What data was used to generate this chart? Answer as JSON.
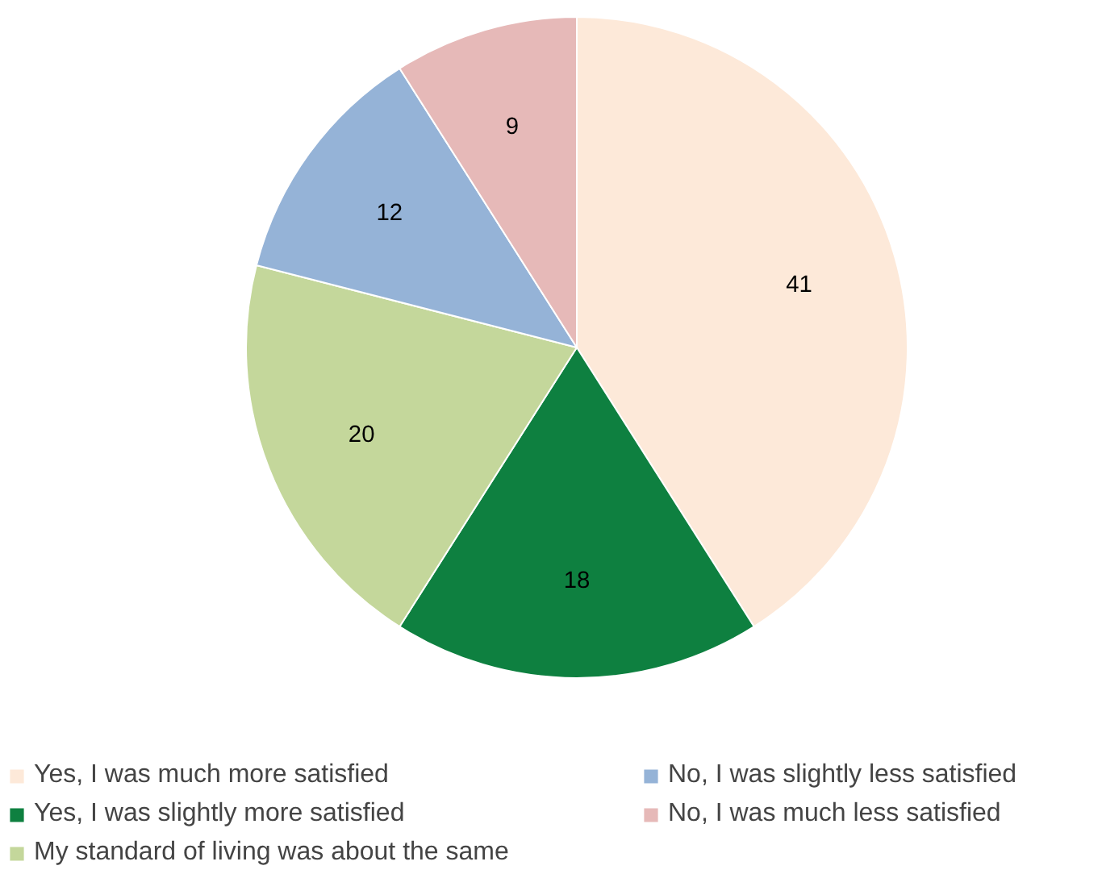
{
  "chart_data": {
    "type": "pie",
    "categories": [
      "Yes, I was much more satisfied",
      "Yes, I was slightly more satisfied",
      "My standard of living was about the same",
      "No, I was slightly less satisfied",
      "No, I was much less satisfied"
    ],
    "values": [
      41,
      18,
      20,
      12,
      9
    ],
    "colors": [
      "#fde9d9",
      "#0e8040",
      "#c4d79b",
      "#95b3d7",
      "#e6b9b8"
    ],
    "data_labels": true,
    "legend": "bottom"
  }
}
